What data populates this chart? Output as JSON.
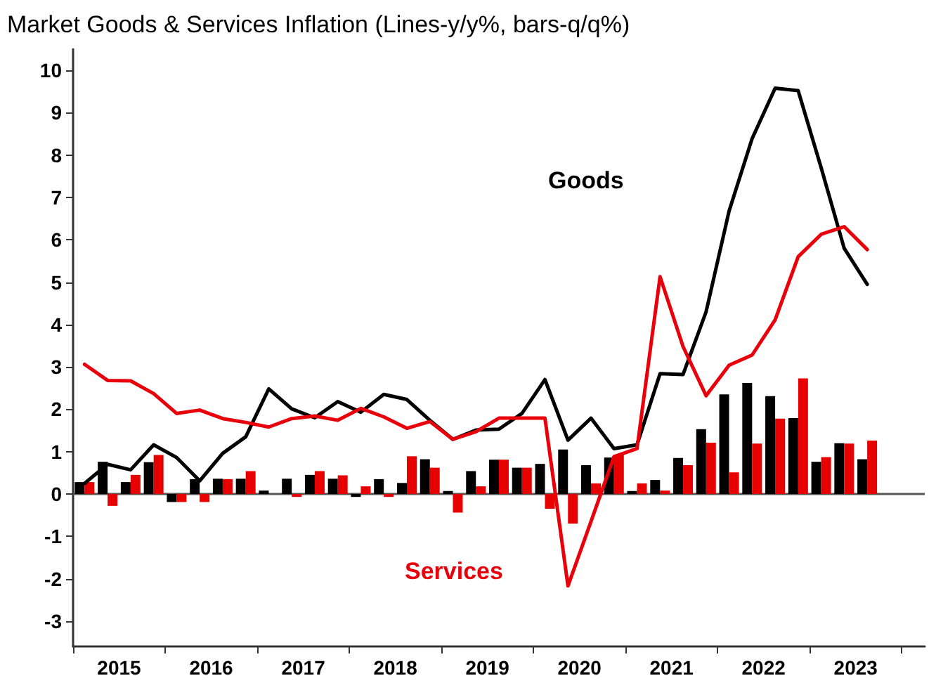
{
  "chart_data": {
    "type": "bar",
    "title": "Market Goods & Services Inflation (Lines-y/y%, bars-q/q%)",
    "x": [
      2015.125,
      2015.375,
      2015.625,
      2015.875,
      2016.125,
      2016.375,
      2016.625,
      2016.875,
      2017.125,
      2017.375,
      2017.625,
      2017.875,
      2018.125,
      2018.375,
      2018.625,
      2018.875,
      2019.125,
      2019.375,
      2019.625,
      2019.875,
      2020.125,
      2020.375,
      2020.625,
      2020.875,
      2021.125,
      2021.375,
      2021.625,
      2021.875,
      2022.125,
      2022.375,
      2022.625,
      2022.875,
      2023.125,
      2023.375,
      2023.625
    ],
    "series": [
      {
        "color": "#000000",
        "values": [
          0.28,
          0.76,
          0.28,
          0.75,
          -0.19,
          0.35,
          0.36,
          0.36,
          0.08,
          0.36,
          0.45,
          0.36,
          -0.07,
          0.35,
          0.26,
          0.82,
          0.07,
          0.54,
          0.81,
          0.62,
          0.71,
          1.05,
          0.68,
          0.86,
          0.07,
          0.33,
          0.85,
          1.53,
          2.35,
          2.62,
          2.31,
          1.79,
          0.76,
          1.2,
          0.82
        ]
      },
      {
        "color": "#e60000",
        "values": [
          0.28,
          -0.28,
          0.45,
          0.92,
          -0.19,
          -0.19,
          0.35,
          0.54,
          null,
          -0.07,
          0.54,
          0.44,
          0.18,
          -0.07,
          0.89,
          0.62,
          -0.44,
          0.18,
          0.81,
          0.62,
          -0.35,
          -0.7,
          0.25,
          0.92,
          0.25,
          0.08,
          0.68,
          1.21,
          0.51,
          1.19,
          1.78,
          2.73,
          0.87,
          1.19,
          1.26
        ]
      },
      {
        "type": "line",
        "name": "Goods",
        "color": "#000000",
        "values": [
          0.25,
          0.7,
          0.57,
          1.16,
          0.86,
          0.31,
          0.96,
          1.35,
          2.48,
          2.01,
          1.8,
          2.18,
          1.93,
          2.35,
          2.23,
          1.74,
          1.29,
          1.51,
          1.53,
          1.9,
          2.7,
          1.27,
          1.79,
          1.07,
          1.16,
          2.84,
          2.82,
          4.3,
          6.68,
          8.39,
          9.58,
          9.52,
          7.7,
          5.8,
          4.95
        ]
      },
      {
        "type": "line",
        "name": "Services",
        "color": "#e8000b",
        "values": [
          3.06,
          2.68,
          2.67,
          2.37,
          1.9,
          1.98,
          1.78,
          1.69,
          1.58,
          1.78,
          1.84,
          1.74,
          2.02,
          1.82,
          1.55,
          1.71,
          1.29,
          1.47,
          1.79,
          1.79,
          1.79,
          -2.17,
          -0.65,
          0.88,
          1.07,
          5.13,
          3.48,
          2.32,
          3.04,
          3.28,
          4.11,
          5.6,
          6.13,
          6.31,
          5.77
        ]
      }
    ],
    "xlim": [
      2015,
      2024.25
    ],
    "xticks": [
      {
        "value": 2015,
        "label": null
      },
      {
        "value": 2015.5,
        "label": "2015"
      },
      {
        "value": 2016,
        "label": null
      },
      {
        "value": 2016.5,
        "label": "2016"
      },
      {
        "value": 2017,
        "label": null
      },
      {
        "value": 2017.5,
        "label": "2017"
      },
      {
        "value": 2018,
        "label": null
      },
      {
        "value": 2018.5,
        "label": "2018"
      },
      {
        "value": 2019,
        "label": null
      },
      {
        "value": 2019.5,
        "label": "2019"
      },
      {
        "value": 2020,
        "label": null
      },
      {
        "value": 2020.5,
        "label": "2020"
      },
      {
        "value": 2021,
        "label": null
      },
      {
        "value": 2021.5,
        "label": "2021"
      },
      {
        "value": 2022,
        "label": null
      },
      {
        "value": 2022.5,
        "label": "2022"
      },
      {
        "value": 2023,
        "label": null
      },
      {
        "value": 2023.5,
        "label": "2023"
      },
      {
        "value": 2024,
        "label": null
      }
    ],
    "ylim": [
      -3.6,
      10.5
    ],
    "yticks": [
      -3,
      -2,
      -1,
      0,
      1,
      2,
      3,
      4,
      5,
      6,
      7,
      8,
      9,
      10
    ],
    "ref_lines": [
      {
        "axis": "y",
        "value": 0,
        "color": "#555555"
      }
    ],
    "grid": false,
    "legend": false,
    "marker": "none",
    "line_style": "solid"
  }
}
